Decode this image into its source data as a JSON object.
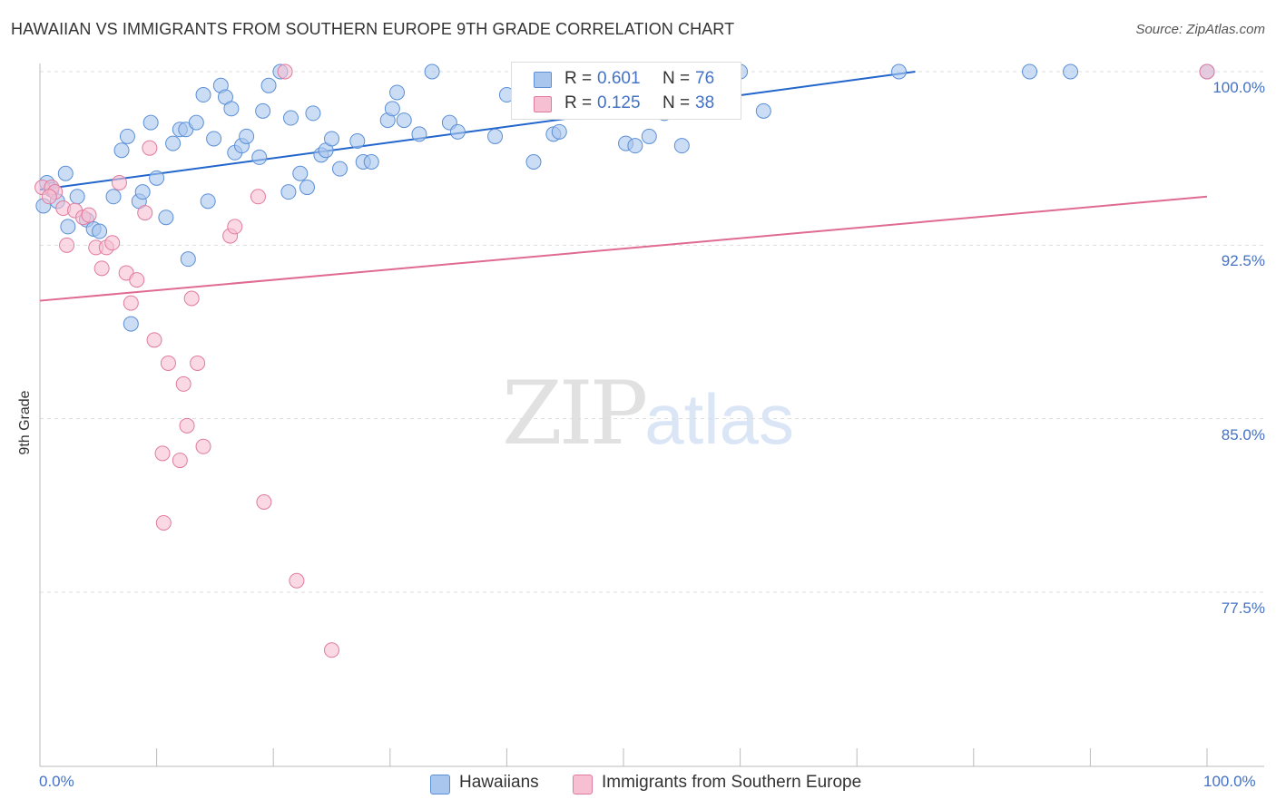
{
  "title": "HAWAIIAN VS IMMIGRANTS FROM SOUTHERN EUROPE 9TH GRADE CORRELATION CHART",
  "source": "Source: ZipAtlas.com",
  "watermark": {
    "zip": "ZIP",
    "atlas": "atlas"
  },
  "colors": {
    "blue_fill": "#a9c6ef",
    "blue_stroke": "#5b8fd6",
    "blue_line": "#2266cc",
    "pink_fill": "#f6bfd2",
    "pink_stroke": "#e07ba0",
    "pink_line": "#e06a93",
    "axis_text": "#4472c4",
    "grid": "#dddddd"
  },
  "legend": {
    "rows": [
      {
        "r_label": "R =",
        "r_value": "0.601",
        "n_label": "N =",
        "n_value": "76"
      },
      {
        "r_label": "R =",
        "r_value": "0.125",
        "n_label": "N =",
        "n_value": "38"
      }
    ]
  },
  "bottom_legend": [
    "Hawaiians",
    "Immigrants from Southern Europe"
  ],
  "chart_data": {
    "type": "scatter",
    "title": "HAWAIIAN VS IMMIGRANTS FROM SOUTHERN EUROPE 9TH GRADE CORRELATION CHART",
    "xlabel": "",
    "ylabel": "9th Grade",
    "xlim": [
      0,
      100
    ],
    "ylim": [
      70,
      101.2
    ],
    "y_ticks": [
      100.0,
      92.5,
      85.0,
      77.5
    ],
    "y_tick_labels": [
      "100.0%",
      "92.5%",
      "85.0%",
      "77.5%"
    ],
    "x_tick_labels": [
      "0.0%",
      "100.0%"
    ],
    "grid": true,
    "legend_position": "top-center",
    "series": [
      {
        "name": "Hawaiians",
        "color": "#a9c6ef",
        "trend": {
          "x": [
            0,
            75
          ],
          "y": [
            94.9,
            100.0
          ]
        },
        "points": [
          [
            0.3,
            94.2
          ],
          [
            2.2,
            95.6
          ],
          [
            2.4,
            93.3
          ],
          [
            3.2,
            94.6
          ],
          [
            4.0,
            93.6
          ],
          [
            4.6,
            93.2
          ],
          [
            5.1,
            93.1
          ],
          [
            6.3,
            94.6
          ],
          [
            7.0,
            96.6
          ],
          [
            7.5,
            97.2
          ],
          [
            7.8,
            89.1
          ],
          [
            8.5,
            94.4
          ],
          [
            8.8,
            94.8
          ],
          [
            9.5,
            97.8
          ],
          [
            10.0,
            95.4
          ],
          [
            10.8,
            93.7
          ],
          [
            11.4,
            96.9
          ],
          [
            12.0,
            97.5
          ],
          [
            12.5,
            97.5
          ],
          [
            12.7,
            91.9
          ],
          [
            13.4,
            97.8
          ],
          [
            14.0,
            99.0
          ],
          [
            14.4,
            94.4
          ],
          [
            14.9,
            97.1
          ],
          [
            15.5,
            99.4
          ],
          [
            15.9,
            98.9
          ],
          [
            16.4,
            98.4
          ],
          [
            16.7,
            96.5
          ],
          [
            17.3,
            96.8
          ],
          [
            17.7,
            97.2
          ],
          [
            18.8,
            96.3
          ],
          [
            19.1,
            98.3
          ],
          [
            19.6,
            99.4
          ],
          [
            20.6,
            100.0
          ],
          [
            21.3,
            94.8
          ],
          [
            21.5,
            98.0
          ],
          [
            22.3,
            95.6
          ],
          [
            22.9,
            95.0
          ],
          [
            23.4,
            98.2
          ],
          [
            24.1,
            96.4
          ],
          [
            24.5,
            96.6
          ],
          [
            25.0,
            97.1
          ],
          [
            25.7,
            95.8
          ],
          [
            27.2,
            97.0
          ],
          [
            27.7,
            96.1
          ],
          [
            28.4,
            96.1
          ],
          [
            29.8,
            97.9
          ],
          [
            30.2,
            98.4
          ],
          [
            30.6,
            99.1
          ],
          [
            31.2,
            97.9
          ],
          [
            32.5,
            97.3
          ],
          [
            33.6,
            100.0
          ],
          [
            35.1,
            97.8
          ],
          [
            35.8,
            97.4
          ],
          [
            39.0,
            97.2
          ],
          [
            40.0,
            99.0
          ],
          [
            42.3,
            96.1
          ],
          [
            44.0,
            97.3
          ],
          [
            44.5,
            97.4
          ],
          [
            48.0,
            100.0
          ],
          [
            49.0,
            98.3
          ],
          [
            50.2,
            96.9
          ],
          [
            51.0,
            96.8
          ],
          [
            52.2,
            97.2
          ],
          [
            53.5,
            98.2
          ],
          [
            55.0,
            96.8
          ],
          [
            57.0,
            100.0
          ],
          [
            60.0,
            100.0
          ],
          [
            62.0,
            98.3
          ],
          [
            73.6,
            100.0
          ],
          [
            84.8,
            100.0
          ],
          [
            88.3,
            100.0
          ],
          [
            100.0,
            100.0
          ],
          [
            0.6,
            95.2
          ],
          [
            1.0,
            94.9
          ],
          [
            1.5,
            94.4
          ]
        ]
      },
      {
        "name": "Immigrants from Southern Europe",
        "color": "#f6bfd2",
        "trend": {
          "x": [
            0,
            100
          ],
          "y": [
            90.1,
            94.6
          ]
        },
        "points": [
          [
            0.2,
            95.0
          ],
          [
            1.0,
            95.0
          ],
          [
            1.3,
            94.8
          ],
          [
            2.0,
            94.1
          ],
          [
            2.3,
            92.5
          ],
          [
            3.0,
            94.0
          ],
          [
            3.7,
            93.7
          ],
          [
            4.2,
            93.8
          ],
          [
            4.8,
            92.4
          ],
          [
            5.3,
            91.5
          ],
          [
            5.7,
            92.4
          ],
          [
            6.2,
            92.6
          ],
          [
            6.8,
            95.2
          ],
          [
            7.4,
            91.3
          ],
          [
            7.8,
            90.0
          ],
          [
            8.3,
            91.0
          ],
          [
            9.0,
            93.9
          ],
          [
            9.4,
            96.7
          ],
          [
            9.8,
            88.4
          ],
          [
            10.5,
            83.5
          ],
          [
            10.6,
            80.5
          ],
          [
            11.0,
            87.4
          ],
          [
            12.0,
            83.2
          ],
          [
            12.3,
            86.5
          ],
          [
            12.6,
            84.7
          ],
          [
            13.0,
            90.2
          ],
          [
            13.5,
            87.4
          ],
          [
            14.0,
            83.8
          ],
          [
            16.3,
            92.9
          ],
          [
            16.7,
            93.3
          ],
          [
            18.7,
            94.6
          ],
          [
            19.2,
            81.4
          ],
          [
            21.0,
            100.0
          ],
          [
            22.0,
            78.0
          ],
          [
            25.0,
            75.0
          ],
          [
            45.0,
            100.0
          ],
          [
            100.0,
            100.0
          ],
          [
            0.8,
            94.6
          ]
        ]
      }
    ]
  }
}
